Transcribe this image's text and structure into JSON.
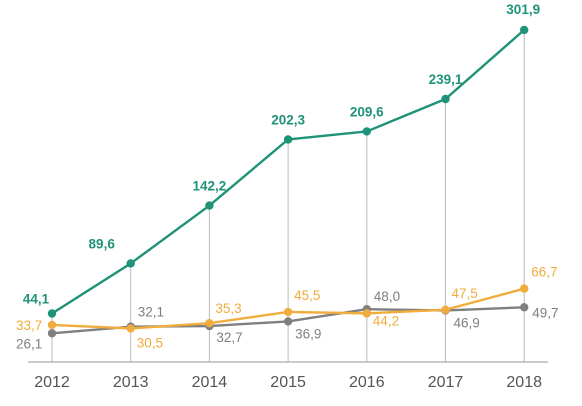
{
  "chart_data": {
    "type": "line",
    "categories": [
      "2012",
      "2013",
      "2014",
      "2015",
      "2016",
      "2017",
      "2018"
    ],
    "series": [
      {
        "values": [
          44.1,
          89.6,
          142.2,
          202.3,
          209.6,
          239.1,
          301.9
        ],
        "labels": [
          "44,1",
          "89,6",
          "142,2",
          "202,3",
          "209,6",
          "239,1",
          "301,9"
        ],
        "color": "#1f9278"
      },
      {
        "values": [
          33.7,
          30.5,
          35.3,
          45.5,
          44.2,
          47.5,
          66.7
        ],
        "labels": [
          "33,7",
          "30,5",
          "35,3",
          "45,5",
          "44,2",
          "47,5",
          "66,7"
        ],
        "color": "#f0ac3c"
      },
      {
        "values": [
          26.1,
          32.1,
          32.7,
          36.9,
          48.0,
          46.9,
          49.7
        ],
        "labels": [
          "26,1",
          "32,1",
          "32,7",
          "36,9",
          "48,0",
          "46,9",
          "49,7"
        ],
        "color": "#7f7f7f"
      }
    ],
    "ylim": [
      0,
      320
    ],
    "grid": false,
    "drop_lines": true,
    "axis_color": "#aaaaaa"
  }
}
